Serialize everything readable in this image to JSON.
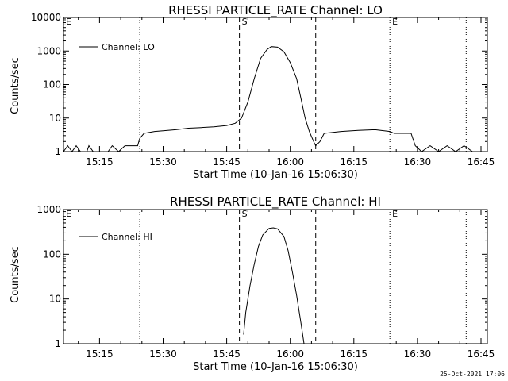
{
  "footer": {
    "timestamp": "25-Oct-2021 17:06"
  },
  "chart_data": [
    {
      "type": "line",
      "title": "RHESSI PARTICLE_RATE Channel: LO",
      "xlabel": "Start Time (10-Jan-16 15:06:30)",
      "ylabel": "Counts/sec",
      "yscale": "log",
      "ylim": [
        1,
        10000
      ],
      "xlim": [
        "15:06:30",
        "16:46:30"
      ],
      "x_tick_labels": [
        "15:15",
        "15:30",
        "15:45",
        "16:00",
        "16:15",
        "16:30",
        "16:45"
      ],
      "y_tick_labels": [
        "1",
        "10",
        "100",
        "1000",
        "10000"
      ],
      "legend": {
        "entries": [
          "Channel: LO"
        ],
        "placement": "top-left"
      },
      "markers": [
        {
          "time": "15:06:30",
          "label": "E",
          "style": "dotted"
        },
        {
          "time": "15:24:30",
          "label": "",
          "style": "dotted"
        },
        {
          "time": "15:48:00",
          "label": "S",
          "style": "dashed"
        },
        {
          "time": "16:06:00",
          "label": "",
          "style": "dashed"
        },
        {
          "time": "16:23:30",
          "label": "E",
          "style": "dotted"
        },
        {
          "time": "16:41:30",
          "label": "",
          "style": "dotted"
        }
      ],
      "series": [
        {
          "name": "Channel: LO",
          "points": [
            [
              "15:06:30",
              1
            ],
            [
              "15:07:30",
              1.5
            ],
            [
              "15:08:30",
              1
            ],
            [
              "15:09:30",
              1.5
            ],
            [
              "15:10:30",
              1
            ],
            [
              "15:12:00",
              1
            ],
            [
              "15:12:30",
              1.5
            ],
            [
              "15:13:30",
              1
            ],
            [
              "15:17:00",
              1
            ],
            [
              "15:18:00",
              1.5
            ],
            [
              "15:19:30",
              1
            ],
            [
              "15:21:00",
              1.5
            ],
            [
              "15:24:00",
              1.5
            ],
            [
              "15:24:30",
              2.5
            ],
            [
              "15:25:30",
              3.5
            ],
            [
              "15:28:00",
              4
            ],
            [
              "15:30:00",
              4.2
            ],
            [
              "15:33:00",
              4.5
            ],
            [
              "15:36:00",
              5
            ],
            [
              "15:39:00",
              5.2
            ],
            [
              "15:42:00",
              5.5
            ],
            [
              "15:45:00",
              6
            ],
            [
              "15:47:00",
              7
            ],
            [
              "15:48:30",
              10
            ],
            [
              "15:50:00",
              30
            ],
            [
              "15:51:30",
              150
            ],
            [
              "15:53:00",
              600
            ],
            [
              "15:54:30",
              1100
            ],
            [
              "15:55:30",
              1350
            ],
            [
              "15:57:00",
              1300
            ],
            [
              "15:58:30",
              950
            ],
            [
              "16:00:00",
              450
            ],
            [
              "16:01:30",
              150
            ],
            [
              "16:02:30",
              40
            ],
            [
              "16:03:30",
              10
            ],
            [
              "16:04:30",
              4
            ],
            [
              "16:05:30",
              2
            ],
            [
              "16:06:00",
              1.5
            ],
            [
              "16:07:00",
              2
            ],
            [
              "16:08:00",
              3.5
            ],
            [
              "16:12:00",
              4
            ],
            [
              "16:16:00",
              4.3
            ],
            [
              "16:20:00",
              4.5
            ],
            [
              "16:23:30",
              4
            ],
            [
              "16:24:30",
              3.5
            ],
            [
              "16:28:30",
              3.5
            ],
            [
              "16:29:30",
              1.5
            ],
            [
              "16:31:00",
              1
            ],
            [
              "16:33:00",
              1.5
            ],
            [
              "16:35:00",
              1
            ],
            [
              "16:37:00",
              1.5
            ],
            [
              "16:39:00",
              1
            ],
            [
              "16:41:00",
              1.5
            ],
            [
              "16:43:00",
              1
            ]
          ]
        }
      ]
    },
    {
      "type": "line",
      "title": "RHESSI PARTICLE_RATE Channel: HI",
      "xlabel": "Start Time (10-Jan-16 15:06:30)",
      "ylabel": "Counts/sec",
      "yscale": "log",
      "ylim": [
        1,
        1000
      ],
      "xlim": [
        "15:06:30",
        "16:46:30"
      ],
      "x_tick_labels": [
        "15:15",
        "15:30",
        "15:45",
        "16:00",
        "16:15",
        "16:30",
        "16:45"
      ],
      "y_tick_labels": [
        "1",
        "10",
        "100",
        "1000"
      ],
      "legend": {
        "entries": [
          "Channel: HI"
        ],
        "placement": "top-left"
      },
      "markers": [
        {
          "time": "15:06:30",
          "label": "E",
          "style": "dotted"
        },
        {
          "time": "15:24:30",
          "label": "",
          "style": "dotted"
        },
        {
          "time": "15:48:00",
          "label": "S",
          "style": "dashed"
        },
        {
          "time": "16:06:00",
          "label": "",
          "style": "dashed"
        },
        {
          "time": "16:23:30",
          "label": "E",
          "style": "dotted"
        },
        {
          "time": "16:41:30",
          "label": "",
          "style": "dotted"
        }
      ],
      "series": [
        {
          "name": "Channel: HI",
          "points": [
            [
              "15:49:00",
              1.6
            ],
            [
              "15:49:30",
              5
            ],
            [
              "15:50:30",
              20
            ],
            [
              "15:51:30",
              60
            ],
            [
              "15:52:30",
              150
            ],
            [
              "15:53:30",
              270
            ],
            [
              "15:55:00",
              380
            ],
            [
              "15:56:00",
              390
            ],
            [
              "15:57:00",
              370
            ],
            [
              "15:58:30",
              250
            ],
            [
              "15:59:30",
              120
            ],
            [
              "16:00:30",
              40
            ],
            [
              "16:01:30",
              12
            ],
            [
              "16:02:30",
              3
            ],
            [
              "16:03:15",
              1
            ]
          ]
        }
      ]
    }
  ]
}
